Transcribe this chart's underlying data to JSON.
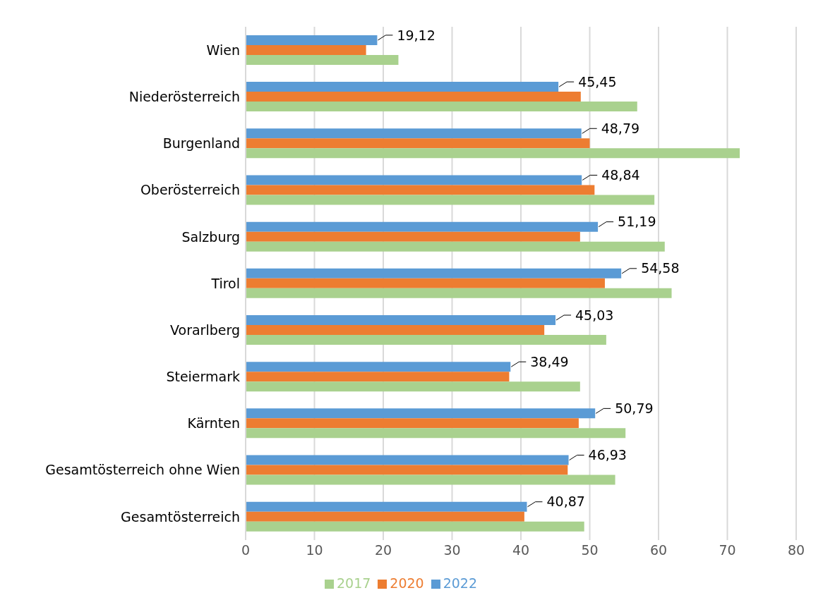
{
  "chart_data": {
    "type": "bar",
    "orientation": "horizontal",
    "categories": [
      "Wien",
      "Niederösterreich",
      "Burgenland",
      "Oberösterreich",
      "Salzburg",
      "Tirol",
      "Vorarlberg",
      "Steiermark",
      "Kärnten",
      "Gesamtösterreich ohne Wien",
      "Gesamtösterreich"
    ],
    "series": [
      {
        "name": "2022",
        "color": "#5b9bd5",
        "values": [
          19.12,
          45.45,
          48.79,
          48.84,
          51.19,
          54.58,
          45.03,
          38.49,
          50.79,
          46.93,
          40.87
        ],
        "value_labels": [
          "19,12",
          "45,45",
          "48,79",
          "48,84",
          "51,19",
          "54,58",
          "45,03",
          "38,49",
          "50,79",
          "46,93",
          "40,87"
        ]
      },
      {
        "name": "2020",
        "color": "#ed7d31",
        "values": [
          17.5,
          48.7,
          50.0,
          50.7,
          48.6,
          52.2,
          43.4,
          38.3,
          48.4,
          46.8,
          40.5
        ]
      },
      {
        "name": "2017",
        "color": "#a9d18e",
        "values": [
          22.2,
          56.9,
          71.8,
          59.4,
          60.9,
          61.9,
          52.4,
          48.6,
          55.2,
          53.7,
          49.2
        ]
      }
    ],
    "xlim": [
      0,
      80
    ],
    "xticks": [
      0,
      10,
      20,
      30,
      40,
      50,
      60,
      70,
      80
    ],
    "grid": "x",
    "legend": "bottom"
  }
}
